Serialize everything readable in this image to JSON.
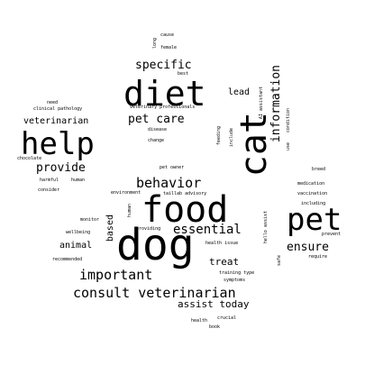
{
  "colors": {
    "background": "#ffffff",
    "text": "#000000"
  },
  "words": {
    "dog": "dog",
    "food": "food",
    "diet": "diet",
    "help": "help",
    "cat": "cat",
    "pet": "pet",
    "consult_veterinarian": "consult veterinarian",
    "important": "important",
    "behavior": "behavior",
    "essential": "essential",
    "specific": "specific",
    "pet_care": "pet care",
    "provide": "provide",
    "information": "information",
    "ensure": "ensure",
    "assist_today": "assist today",
    "treat": "treat",
    "animal": "animal",
    "based": "based",
    "lead": "lead",
    "veterinarian": "veterinarian",
    "cause": "cause",
    "female": "female",
    "long": "long",
    "best": "best",
    "ai_assistant": "AI assistant",
    "condition": "condition",
    "use": "use",
    "clinical_pathology": "clinical pathology",
    "need": "need",
    "veterinary_professionals": "veterinary professionals",
    "disease": "disease",
    "change": "change",
    "feeding": "feeding",
    "include": "include",
    "chocolate": "chocolate",
    "harmful": "harmful",
    "human": "human",
    "consider": "consider",
    "pet_owner": "pet owner",
    "environment": "environment",
    "taillab_advisory": "taillab advisory",
    "human_v": "human",
    "breed": "breed",
    "medication": "medication",
    "vaccination": "vaccination",
    "including": "including",
    "prevent": "prevent",
    "monitor": "monitor",
    "wellbeing": "wellbeing",
    "recommended": "recommended",
    "providing": "providing",
    "health_issue": "health issue",
    "hello_assist": "hello assist",
    "safe": "safe",
    "require": "require",
    "training_type": "training type",
    "symptoms": "symptoms",
    "crucial": "crucial",
    "health": "health",
    "book": "book"
  }
}
